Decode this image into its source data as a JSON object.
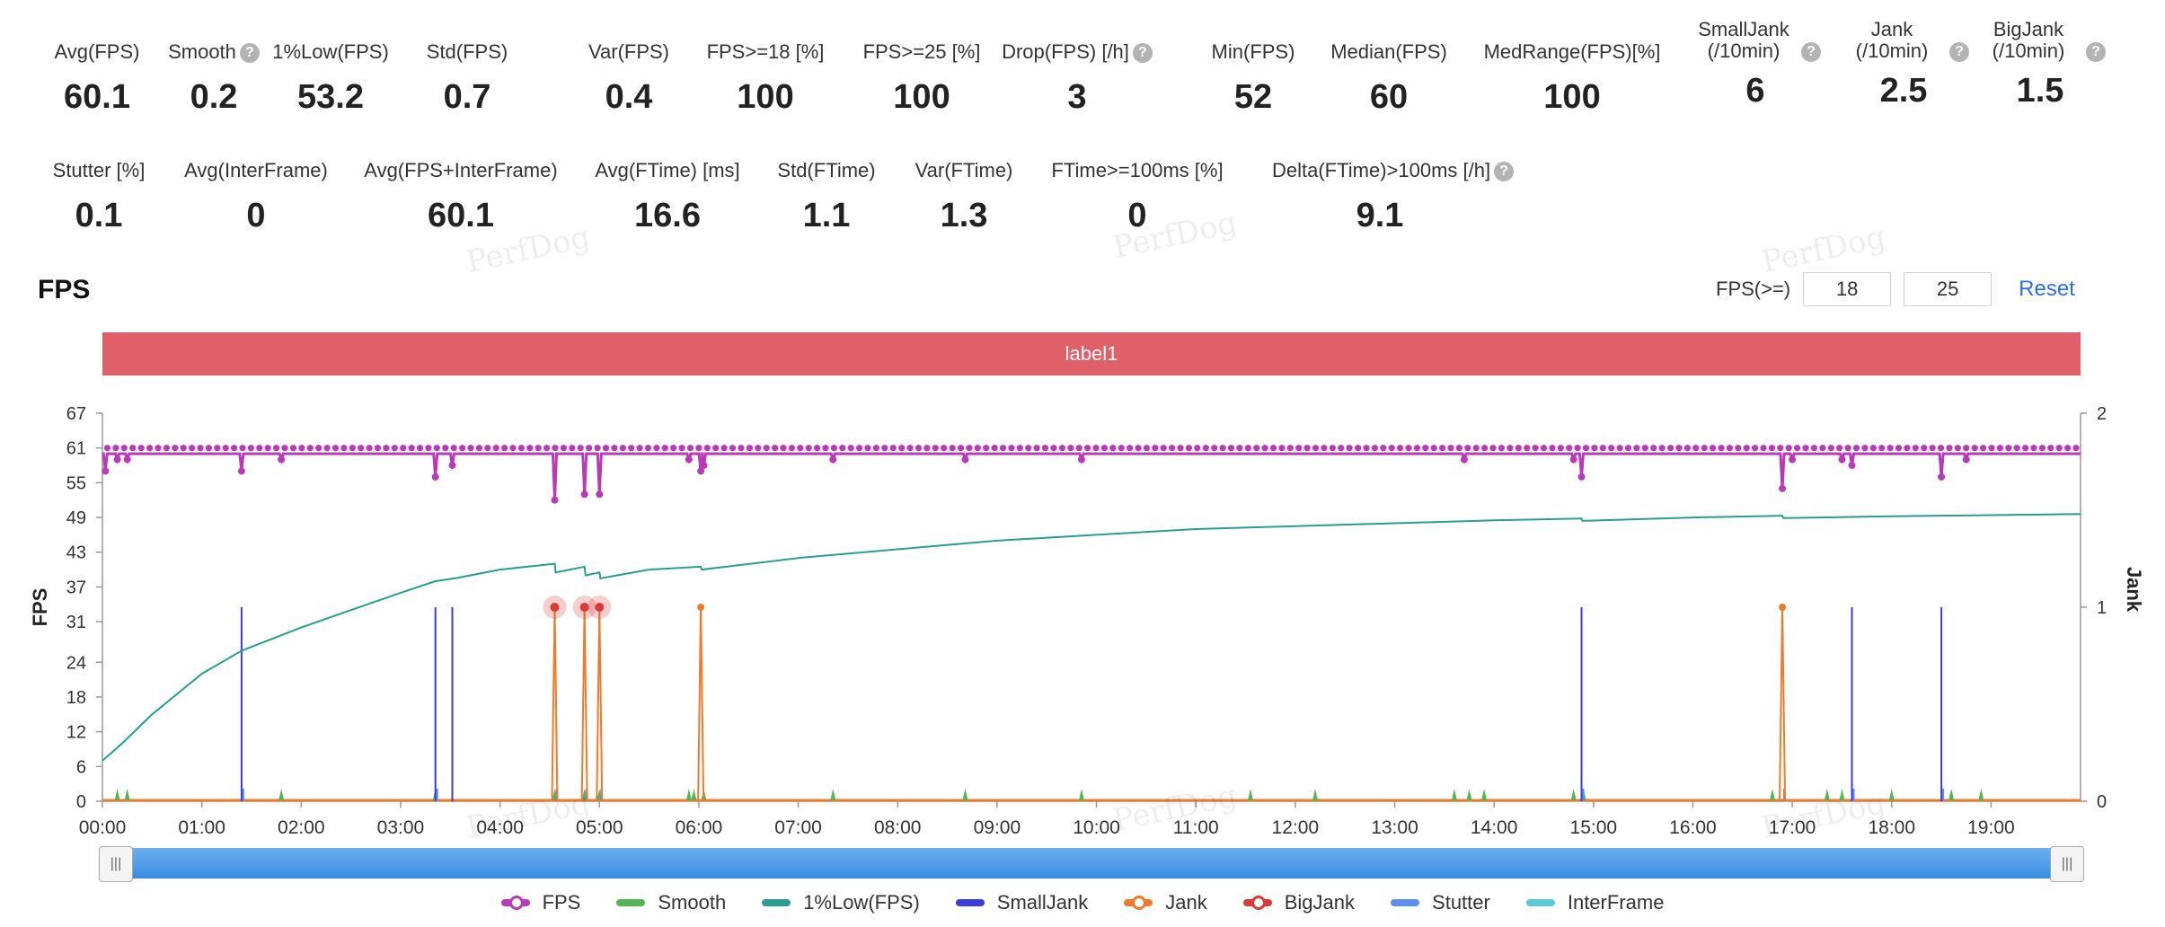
{
  "stats_row1": [
    {
      "label": "Avg(FPS)",
      "value": "60.1",
      "help": false
    },
    {
      "label": "Smooth",
      "value": "0.2",
      "help": true
    },
    {
      "label": "1%Low(FPS)",
      "value": "53.2",
      "help": false
    },
    {
      "label": "Std(FPS)",
      "value": "0.7",
      "help": false
    },
    {
      "label": "Var(FPS)",
      "value": "0.4",
      "help": false
    },
    {
      "label": "FPS>=18 [%]",
      "value": "100",
      "help": false
    },
    {
      "label": "FPS>=25 [%]",
      "value": "100",
      "help": false
    },
    {
      "label": "Drop(FPS) [/h]",
      "value": "3",
      "help": true
    },
    {
      "label": "Min(FPS)",
      "value": "52",
      "help": false
    },
    {
      "label": "Median(FPS)",
      "value": "60",
      "help": false
    },
    {
      "label": "MedRange(FPS)[%]",
      "value": "100",
      "help": false
    },
    {
      "label": "SmallJank (/10min)",
      "value": "6",
      "help": true
    },
    {
      "label": "Jank (/10min)",
      "value": "2.5",
      "help": true
    },
    {
      "label": "BigJank (/10min)",
      "value": "1.5",
      "help": true
    }
  ],
  "stats_row2": [
    {
      "label": "Stutter [%]",
      "value": "0.1",
      "help": false
    },
    {
      "label": "Avg(InterFrame)",
      "value": "0",
      "help": false
    },
    {
      "label": "Avg(FPS+InterFrame)",
      "value": "60.1",
      "help": false
    },
    {
      "label": "Avg(FTime) [ms]",
      "value": "16.6",
      "help": false
    },
    {
      "label": "Std(FTime)",
      "value": "1.1",
      "help": false
    },
    {
      "label": "Var(FTime)",
      "value": "1.3",
      "help": false
    },
    {
      "label": "FTime>=100ms [%]",
      "value": "0",
      "help": false
    },
    {
      "label": "Delta(FTime)>100ms [/h]",
      "value": "9.1",
      "help": true
    }
  ],
  "help_glyph": "?",
  "section_title": "FPS",
  "filter": {
    "label": "FPS(>=)",
    "value1": "18",
    "value2": "25",
    "reset_label": "Reset"
  },
  "label_band": "label1",
  "watermark": "PerfDog",
  "slider_handle_glyph": "|||",
  "colors": {
    "fps": "#b83ab8",
    "smooth": "#55b555",
    "low1": "#2a9d8f",
    "smalljank": "#3b3bdc",
    "jank": "#f07a2c",
    "bigjank": "#d93a3a",
    "stutter": "#5b8ff0",
    "interframe": "#5bc8dc",
    "band": "#e0606a",
    "axis": "#999999"
  },
  "chart_data": {
    "type": "line",
    "ylabel": "FPS",
    "y2label": "Jank",
    "ylim": [
      0,
      67
    ],
    "yticks": [
      0,
      6,
      12,
      18,
      24,
      31,
      37,
      43,
      49,
      55,
      61,
      67
    ],
    "y2lim": [
      0,
      2
    ],
    "y2ticks": [
      0,
      1,
      2
    ],
    "xlim_min": [
      0,
      19.9
    ],
    "xtick_labels": [
      "00:00",
      "01:00",
      "02:00",
      "03:00",
      "04:00",
      "05:00",
      "06:00",
      "07:00",
      "08:00",
      "09:00",
      "10:00",
      "11:00",
      "12:00",
      "13:00",
      "14:00",
      "15:00",
      "16:00",
      "17:00",
      "18:00",
      "19:00"
    ],
    "legend": [
      "FPS",
      "Smooth",
      "1%Low(FPS)",
      "SmallJank",
      "Jank",
      "BigJank",
      "Stutter",
      "InterFrame"
    ],
    "fps_baseline": 60,
    "fps_dips": [
      {
        "t": 0.03,
        "v": 57
      },
      {
        "t": 0.15,
        "v": 59
      },
      {
        "t": 0.25,
        "v": 59
      },
      {
        "t": 1.4,
        "v": 57
      },
      {
        "t": 1.8,
        "v": 59
      },
      {
        "t": 3.35,
        "v": 56
      },
      {
        "t": 3.52,
        "v": 58
      },
      {
        "t": 4.55,
        "v": 52
      },
      {
        "t": 4.85,
        "v": 53
      },
      {
        "t": 5.0,
        "v": 53
      },
      {
        "t": 5.9,
        "v": 59
      },
      {
        "t": 6.02,
        "v": 57
      },
      {
        "t": 6.05,
        "v": 58
      },
      {
        "t": 7.35,
        "v": 59
      },
      {
        "t": 8.68,
        "v": 59
      },
      {
        "t": 9.85,
        "v": 59
      },
      {
        "t": 13.7,
        "v": 59
      },
      {
        "t": 14.8,
        "v": 59
      },
      {
        "t": 14.88,
        "v": 56
      },
      {
        "t": 16.9,
        "v": 54
      },
      {
        "t": 17.0,
        "v": 59
      },
      {
        "t": 17.5,
        "v": 59
      },
      {
        "t": 17.6,
        "v": 58
      },
      {
        "t": 18.5,
        "v": 56
      },
      {
        "t": 18.75,
        "v": 59
      }
    ],
    "low1_curve": [
      {
        "t": 0.0,
        "v": 7
      },
      {
        "t": 0.2,
        "v": 10
      },
      {
        "t": 0.5,
        "v": 15
      },
      {
        "t": 1.0,
        "v": 22
      },
      {
        "t": 1.4,
        "v": 26
      },
      {
        "t": 2.0,
        "v": 30
      },
      {
        "t": 2.5,
        "v": 33
      },
      {
        "t": 3.0,
        "v": 36
      },
      {
        "t": 3.35,
        "v": 38
      },
      {
        "t": 3.55,
        "v": 38.5
      },
      {
        "t": 4.0,
        "v": 40
      },
      {
        "t": 4.55,
        "v": 41
      },
      {
        "t": 4.56,
        "v": 39.5
      },
      {
        "t": 4.85,
        "v": 40.5
      },
      {
        "t": 4.86,
        "v": 39
      },
      {
        "t": 5.0,
        "v": 39.5
      },
      {
        "t": 5.01,
        "v": 38.5
      },
      {
        "t": 5.5,
        "v": 40
      },
      {
        "t": 6.02,
        "v": 40.5
      },
      {
        "t": 6.03,
        "v": 40
      },
      {
        "t": 7.0,
        "v": 42
      },
      {
        "t": 8.0,
        "v": 43.5
      },
      {
        "t": 9.0,
        "v": 45
      },
      {
        "t": 10.0,
        "v": 46
      },
      {
        "t": 11.0,
        "v": 47
      },
      {
        "t": 12.0,
        "v": 47.5
      },
      {
        "t": 13.0,
        "v": 48
      },
      {
        "t": 14.0,
        "v": 48.5
      },
      {
        "t": 14.88,
        "v": 48.8
      },
      {
        "t": 14.89,
        "v": 48.4
      },
      {
        "t": 16.0,
        "v": 49
      },
      {
        "t": 16.9,
        "v": 49.3
      },
      {
        "t": 16.91,
        "v": 48.9
      },
      {
        "t": 18.0,
        "v": 49.2
      },
      {
        "t": 19.0,
        "v": 49.4
      },
      {
        "t": 19.9,
        "v": 49.6
      }
    ],
    "smalljank_times": [
      1.4,
      3.35,
      3.52,
      14.88,
      17.6,
      18.5
    ],
    "jank_times": [
      4.55,
      4.85,
      5.0,
      6.02,
      16.9
    ],
    "bigjank_times": [
      4.55,
      4.85,
      5.0
    ],
    "smooth_blips": [
      0.15,
      0.25,
      1.8,
      3.35,
      4.55,
      4.85,
      5.0,
      5.9,
      5.95,
      6.05,
      7.35,
      8.68,
      9.85,
      11.55,
      12.2,
      13.6,
      13.75,
      13.9,
      14.8,
      14.9,
      16.8,
      17.35,
      17.5,
      18.0,
      18.6,
      18.9
    ],
    "stutter_times": [
      1.4,
      3.35,
      4.55,
      4.85,
      5.0,
      14.88,
      16.9,
      17.6,
      18.5
    ]
  }
}
